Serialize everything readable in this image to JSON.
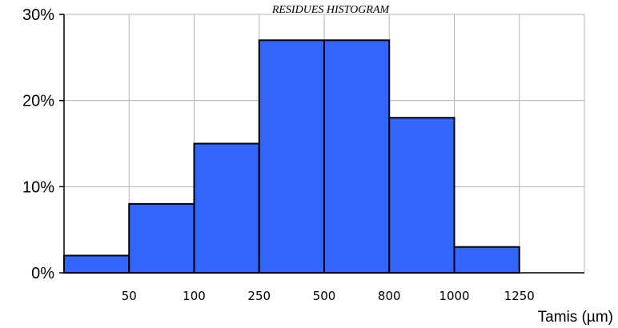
{
  "chart_data": {
    "type": "bar",
    "title": "RESIDUES HISTOGRAM",
    "xlabel": "Tamis (µm)",
    "ylabel": "",
    "x_tick_labels": [
      "50",
      "100",
      "250",
      "500",
      "800",
      "1000",
      "1250"
    ],
    "bins": [
      "< 50",
      "50–100",
      "100–250",
      "250–500",
      "500–800",
      "800–1000",
      "1000–1250"
    ],
    "values": [
      2,
      8,
      15,
      27,
      27,
      18,
      3
    ],
    "y_unit": "%",
    "y_ticks": [
      "0%",
      "10%",
      "20%",
      "30%"
    ],
    "ylim": [
      0,
      30
    ],
    "grid": true,
    "legend": "none",
    "bar_color": "#3366FF",
    "bar_edge_color": "#000000",
    "grid_color": "#b3b3b3"
  }
}
